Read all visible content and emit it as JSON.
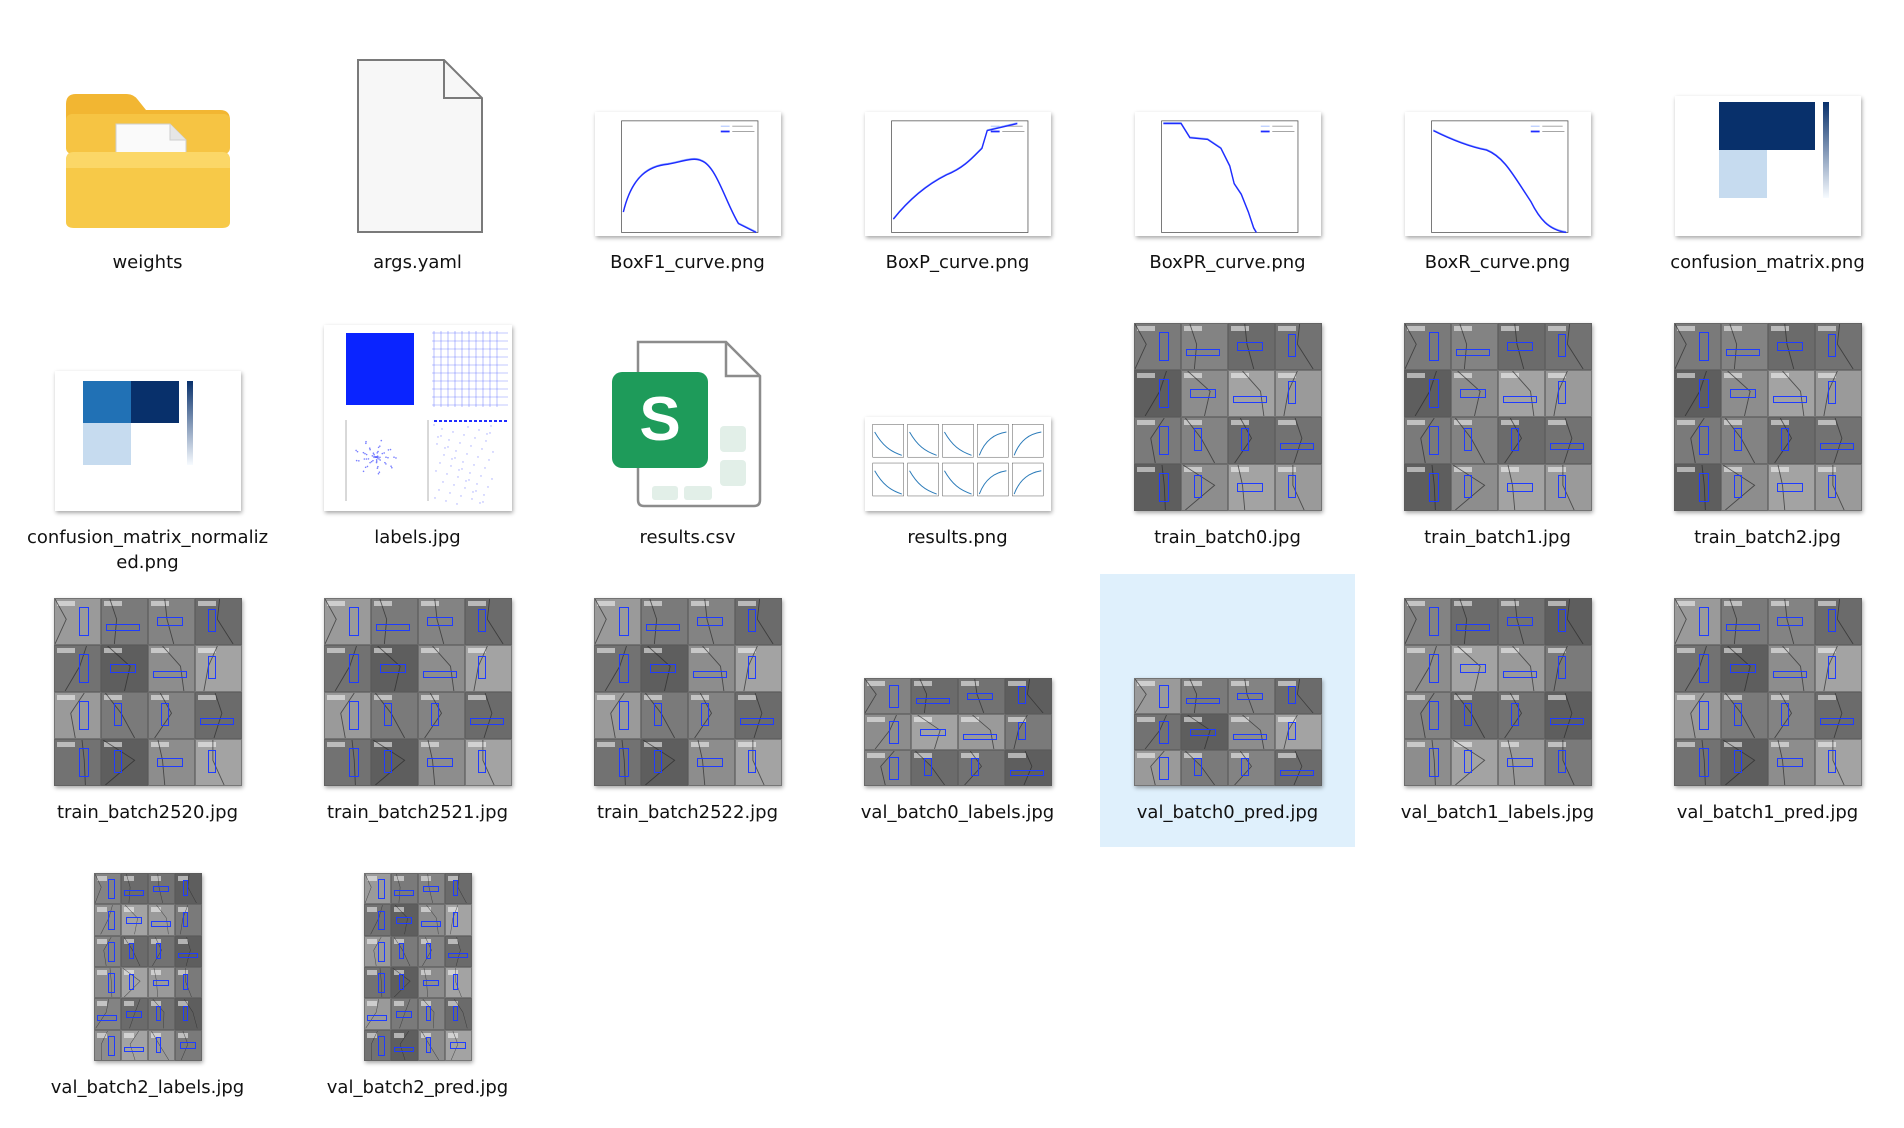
{
  "files": [
    {
      "name": "weights",
      "type": "folder"
    },
    {
      "name": "args.yaml",
      "type": "doc"
    },
    {
      "name": "BoxF1_curve.png",
      "type": "curve",
      "curve": "f1"
    },
    {
      "name": "BoxP_curve.png",
      "type": "curve",
      "curve": "p"
    },
    {
      "name": "BoxPR_curve.png",
      "type": "curve",
      "curve": "pr"
    },
    {
      "name": "BoxR_curve.png",
      "type": "curve",
      "curve": "r"
    },
    {
      "name": "confusion_matrix.png",
      "type": "matrix",
      "variant": "raw"
    },
    {
      "name": "confusion_matrix_normalized.png",
      "type": "matrix",
      "variant": "norm"
    },
    {
      "name": "labels.jpg",
      "type": "labels"
    },
    {
      "name": "results.csv",
      "type": "sheet",
      "icon_letter": "S"
    },
    {
      "name": "results.png",
      "type": "results"
    },
    {
      "name": "train_batch0.jpg",
      "type": "mosaic",
      "cols": 4,
      "rows": 4
    },
    {
      "name": "train_batch1.jpg",
      "type": "mosaic",
      "cols": 4,
      "rows": 4
    },
    {
      "name": "train_batch2.jpg",
      "type": "mosaic",
      "cols": 4,
      "rows": 4
    },
    {
      "name": "train_batch2520.jpg",
      "type": "mosaic",
      "cols": 4,
      "rows": 4
    },
    {
      "name": "train_batch2521.jpg",
      "type": "mosaic",
      "cols": 4,
      "rows": 4
    },
    {
      "name": "train_batch2522.jpg",
      "type": "mosaic",
      "cols": 4,
      "rows": 4
    },
    {
      "name": "val_batch0_labels.jpg",
      "type": "mosaic",
      "cols": 4,
      "rows": 3,
      "wide": true
    },
    {
      "name": "val_batch0_pred.jpg",
      "type": "mosaic",
      "cols": 4,
      "rows": 3,
      "wide": true,
      "selected": true
    },
    {
      "name": "val_batch1_labels.jpg",
      "type": "mosaic",
      "cols": 4,
      "rows": 4
    },
    {
      "name": "val_batch1_pred.jpg",
      "type": "mosaic",
      "cols": 4,
      "rows": 4
    },
    {
      "name": "val_batch2_labels.jpg",
      "type": "mosaic",
      "cols": 4,
      "rows": 6,
      "tall": true
    },
    {
      "name": "val_batch2_pred.jpg",
      "type": "mosaic",
      "cols": 4,
      "rows": 6,
      "tall": true
    }
  ],
  "colors": {
    "selection": "#dff0fc",
    "curve_blue": "#1f2cff",
    "matrix_dark": "#08306b",
    "matrix_light": "#c6dbef",
    "sheet_green": "#1e9b5a"
  }
}
